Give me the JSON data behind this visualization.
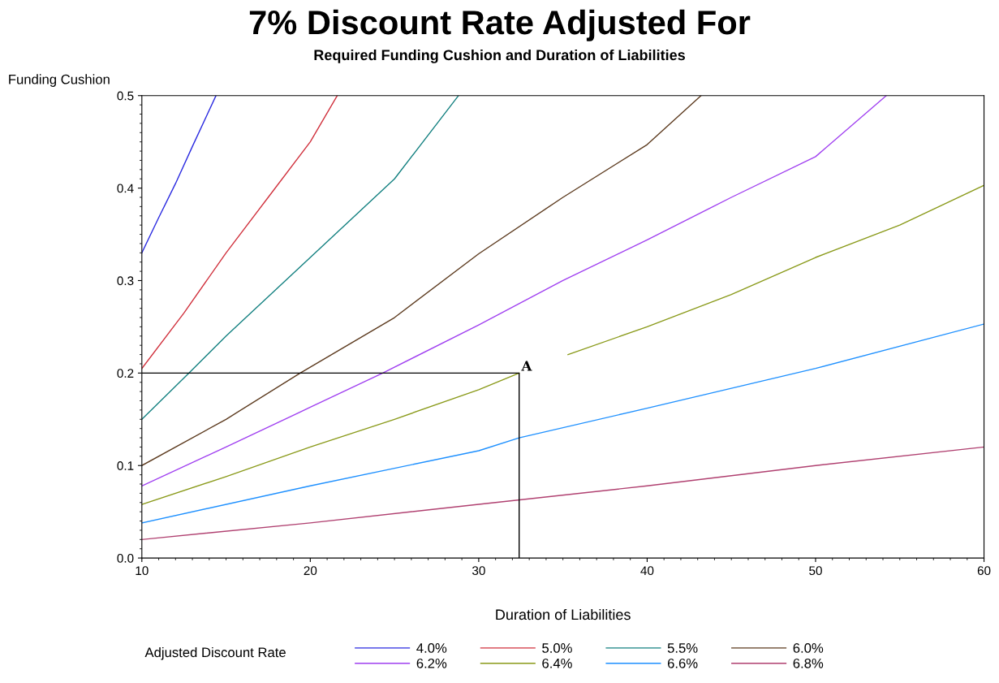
{
  "chart_data": {
    "type": "line",
    "title": "7% Discount Rate Adjusted For",
    "subtitle": "Required Funding Cushion and Duration of Liabilities",
    "xlabel": "Duration of Liabilities",
    "ylabel": "Funding Cushion",
    "legend_title": "Adjusted Discount Rate",
    "legend": "bottom",
    "grid": false,
    "marker": "none",
    "line_style": "solid",
    "xlim": [
      10,
      60
    ],
    "xticks": [
      10,
      20,
      30,
      40,
      50,
      60
    ],
    "ylim": [
      0,
      0.5
    ],
    "yticks": [
      {
        "value": 0,
        "label": "0.0"
      },
      0.1,
      0.2,
      0.3,
      0.4,
      0.5
    ],
    "annotations": [
      {
        "text": "A",
        "x": 32.4,
        "y": 0.2
      }
    ],
    "series": [
      {
        "name": "4.0%",
        "color": "#2a2ae0",
        "x": [
          10,
          11,
          12,
          13,
          14.4
        ],
        "values": [
          0.33,
          0.368,
          0.405,
          0.445,
          0.5
        ]
      },
      {
        "name": "5.0%",
        "color": "#d0303c",
        "x": [
          10,
          12.5,
          15,
          17.5,
          20,
          21.6
        ],
        "values": [
          0.205,
          0.265,
          0.33,
          0.39,
          0.45,
          0.5
        ]
      },
      {
        "name": "5.5%",
        "color": "#138080",
        "x": [
          10,
          12.8,
          15,
          20,
          25,
          28.8
        ],
        "values": [
          0.15,
          0.2,
          0.24,
          0.325,
          0.41,
          0.5
        ]
      },
      {
        "name": "6.0%",
        "color": "#5c3a1e",
        "x": [
          10,
          15,
          19.4,
          25,
          30,
          35,
          40,
          43.2
        ],
        "values": [
          0.1,
          0.15,
          0.2,
          0.26,
          0.329,
          0.39,
          0.447,
          0.5
        ]
      },
      {
        "name": "6.2%",
        "color": "#a040f0",
        "x": [
          10,
          15,
          20,
          24.3,
          30,
          35,
          40,
          45,
          50,
          54.2
        ],
        "values": [
          0.078,
          0.12,
          0.163,
          0.2,
          0.252,
          0.3,
          0.344,
          0.39,
          0.434,
          0.5
        ]
      },
      {
        "name": "6.4%",
        "color": "#8a9a1a",
        "x": [
          10,
          15,
          20,
          25,
          30,
          32.4,
          34,
          35.3,
          40,
          45,
          50,
          55,
          60
        ],
        "values": [
          0.058,
          0.088,
          0.12,
          0.15,
          0.182,
          0.2,
          null,
          0.22,
          0.25,
          0.285,
          0.325,
          0.36,
          0.403
        ]
      },
      {
        "name": "6.6%",
        "color": "#1e90ff",
        "x": [
          10,
          20,
          30,
          32.4,
          40,
          50,
          60
        ],
        "values": [
          0.038,
          0.078,
          0.116,
          0.13,
          0.162,
          0.205,
          0.253
        ]
      },
      {
        "name": "6.8%",
        "color": "#b04070",
        "x": [
          10,
          20,
          30,
          40,
          50,
          60
        ],
        "values": [
          0.02,
          0.038,
          0.058,
          0.078,
          0.1,
          0.12
        ]
      },
      {
        "color": "#000000",
        "x": [
          10,
          32.4,
          32.4
        ],
        "values": [
          0.2,
          0.2,
          0
        ]
      }
    ]
  }
}
